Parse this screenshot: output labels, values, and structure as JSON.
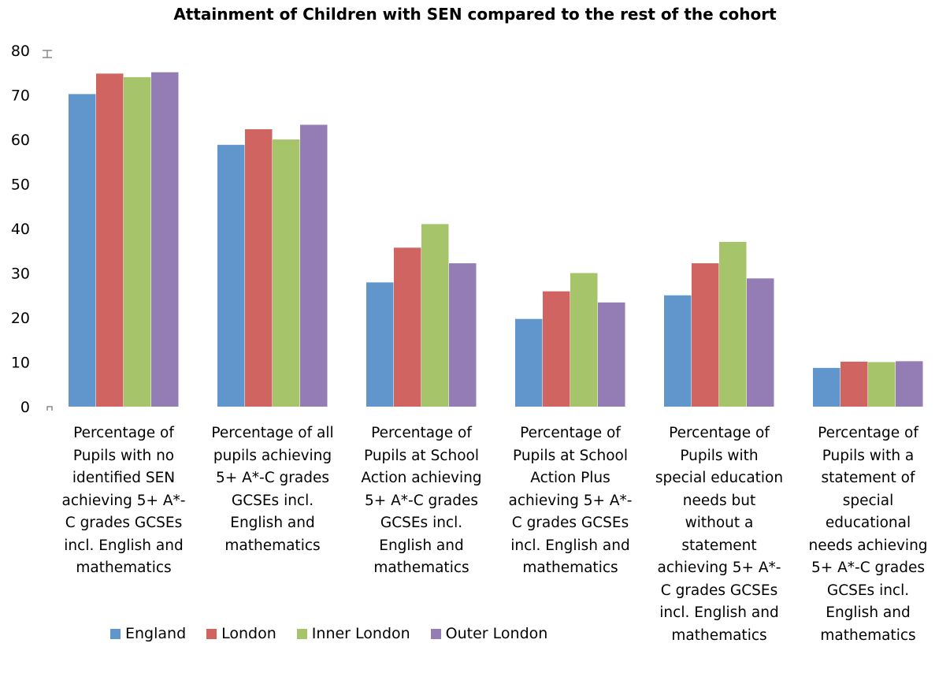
{
  "chart_data": {
    "type": "bar",
    "title": "Attainment of Children with SEN compared to the rest of the cohort",
    "ylim": [
      0,
      80
    ],
    "yticks": [
      0,
      10,
      20,
      30,
      40,
      50,
      60,
      70,
      80
    ],
    "grid": false,
    "legend_position": "bottom-left",
    "categories": [
      "Percentage of Pupils with no identified SEN achieving 5+ A*-C grades GCSEs incl. English and mathematics",
      "Percentage of all pupils achieving 5+ A*-C grades GCSEs incl. English and mathematics",
      "Percentage of Pupils at School Action achieving 5+ A*-C grades GCSEs incl. English and mathematics",
      "Percentage of Pupils at School Action Plus achieving 5+ A*-C grades GCSEs incl. English and mathematics",
      "Percentage of Pupils with special education needs but without a statement achieving 5+ A*-C grades GCSEs incl. English and mathematics",
      "Percentage of Pupils with a statement of special educational needs achieving 5+ A*-C grades GCSEs incl. English and mathematics"
    ],
    "category_lines": [
      [
        "Percentage of",
        "Pupils with no",
        "identified SEN",
        "achieving 5+ A*-",
        "C grades GCSEs",
        "incl. English and",
        "mathematics"
      ],
      [
        "Percentage of all",
        "pupils achieving",
        "5+ A*-C grades",
        "GCSEs incl.",
        "English and",
        "mathematics"
      ],
      [
        "Percentage of",
        "Pupils at School",
        "Action achieving",
        "5+ A*-C grades",
        "GCSEs incl.",
        "English and",
        "mathematics"
      ],
      [
        "Percentage of",
        "Pupils at School",
        "Action Plus",
        "achieving 5+ A*-",
        "C grades GCSEs",
        "incl. English and",
        "mathematics"
      ],
      [
        "Percentage of",
        "Pupils with",
        "special education",
        "needs but",
        "without a",
        "statement",
        "achieving 5+ A*-",
        "C grades GCSEs",
        "incl. English and",
        "mathematics"
      ],
      [
        "Percentage of",
        "Pupils with a",
        "statement of",
        "special",
        "educational",
        "needs achieving",
        "5+ A*-C grades",
        "GCSEs incl.",
        "English and",
        "mathematics"
      ]
    ],
    "series": [
      {
        "name": "England",
        "color": "#6096CB",
        "values": [
          70.2,
          58.8,
          27.9,
          19.7,
          25.0,
          8.7
        ]
      },
      {
        "name": "London",
        "color": "#CF6461",
        "values": [
          74.8,
          62.3,
          35.7,
          25.9,
          32.2,
          10.1
        ]
      },
      {
        "name": "Inner London",
        "color": "#A6C46A",
        "values": [
          74.0,
          60.0,
          41.0,
          30.0,
          37.0,
          10.0
        ]
      },
      {
        "name": "Outer London",
        "color": "#947DB5",
        "values": [
          75.1,
          63.3,
          32.2,
          23.4,
          28.8,
          10.2
        ]
      }
    ]
  }
}
